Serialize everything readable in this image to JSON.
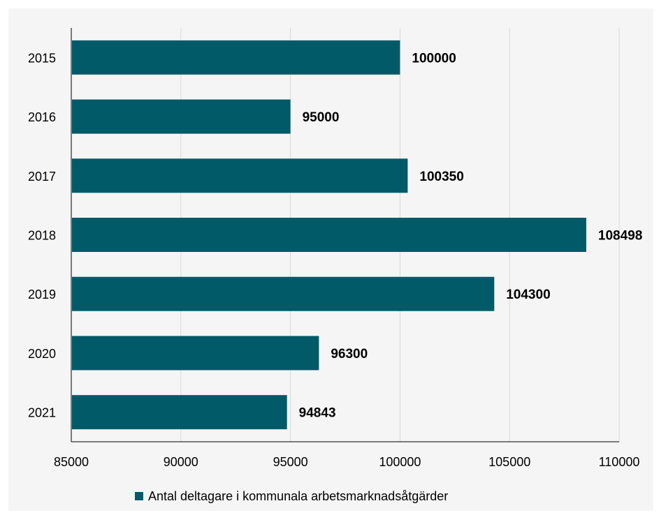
{
  "chart_data": {
    "type": "bar",
    "orientation": "horizontal",
    "categories": [
      "2015",
      "2016",
      "2017",
      "2018",
      "2019",
      "2020",
      "2021"
    ],
    "series": [
      {
        "name": "Antal deltagare i kommunala arbetsmarknadsåtgärder",
        "values": [
          100000,
          95000,
          100350,
          108498,
          104300,
          96300,
          94843
        ],
        "color": "#005a68"
      }
    ],
    "data_labels": [
      "100000",
      "95000",
      "100350",
      "108498",
      "104300",
      "96300",
      "94843"
    ],
    "xlim": [
      85000,
      110000
    ],
    "x_ticks": [
      85000,
      90000,
      95000,
      100000,
      105000,
      110000
    ],
    "x_tick_labels": [
      "85000",
      "90000",
      "95000",
      "100000",
      "105000",
      "110000"
    ],
    "grid": "vertical",
    "legend_position": "bottom",
    "title": "",
    "xlabel": "",
    "ylabel": "",
    "background_color": "#f5f5f5",
    "grid_color": "#d9d9d9",
    "axis_color": "#000000"
  }
}
